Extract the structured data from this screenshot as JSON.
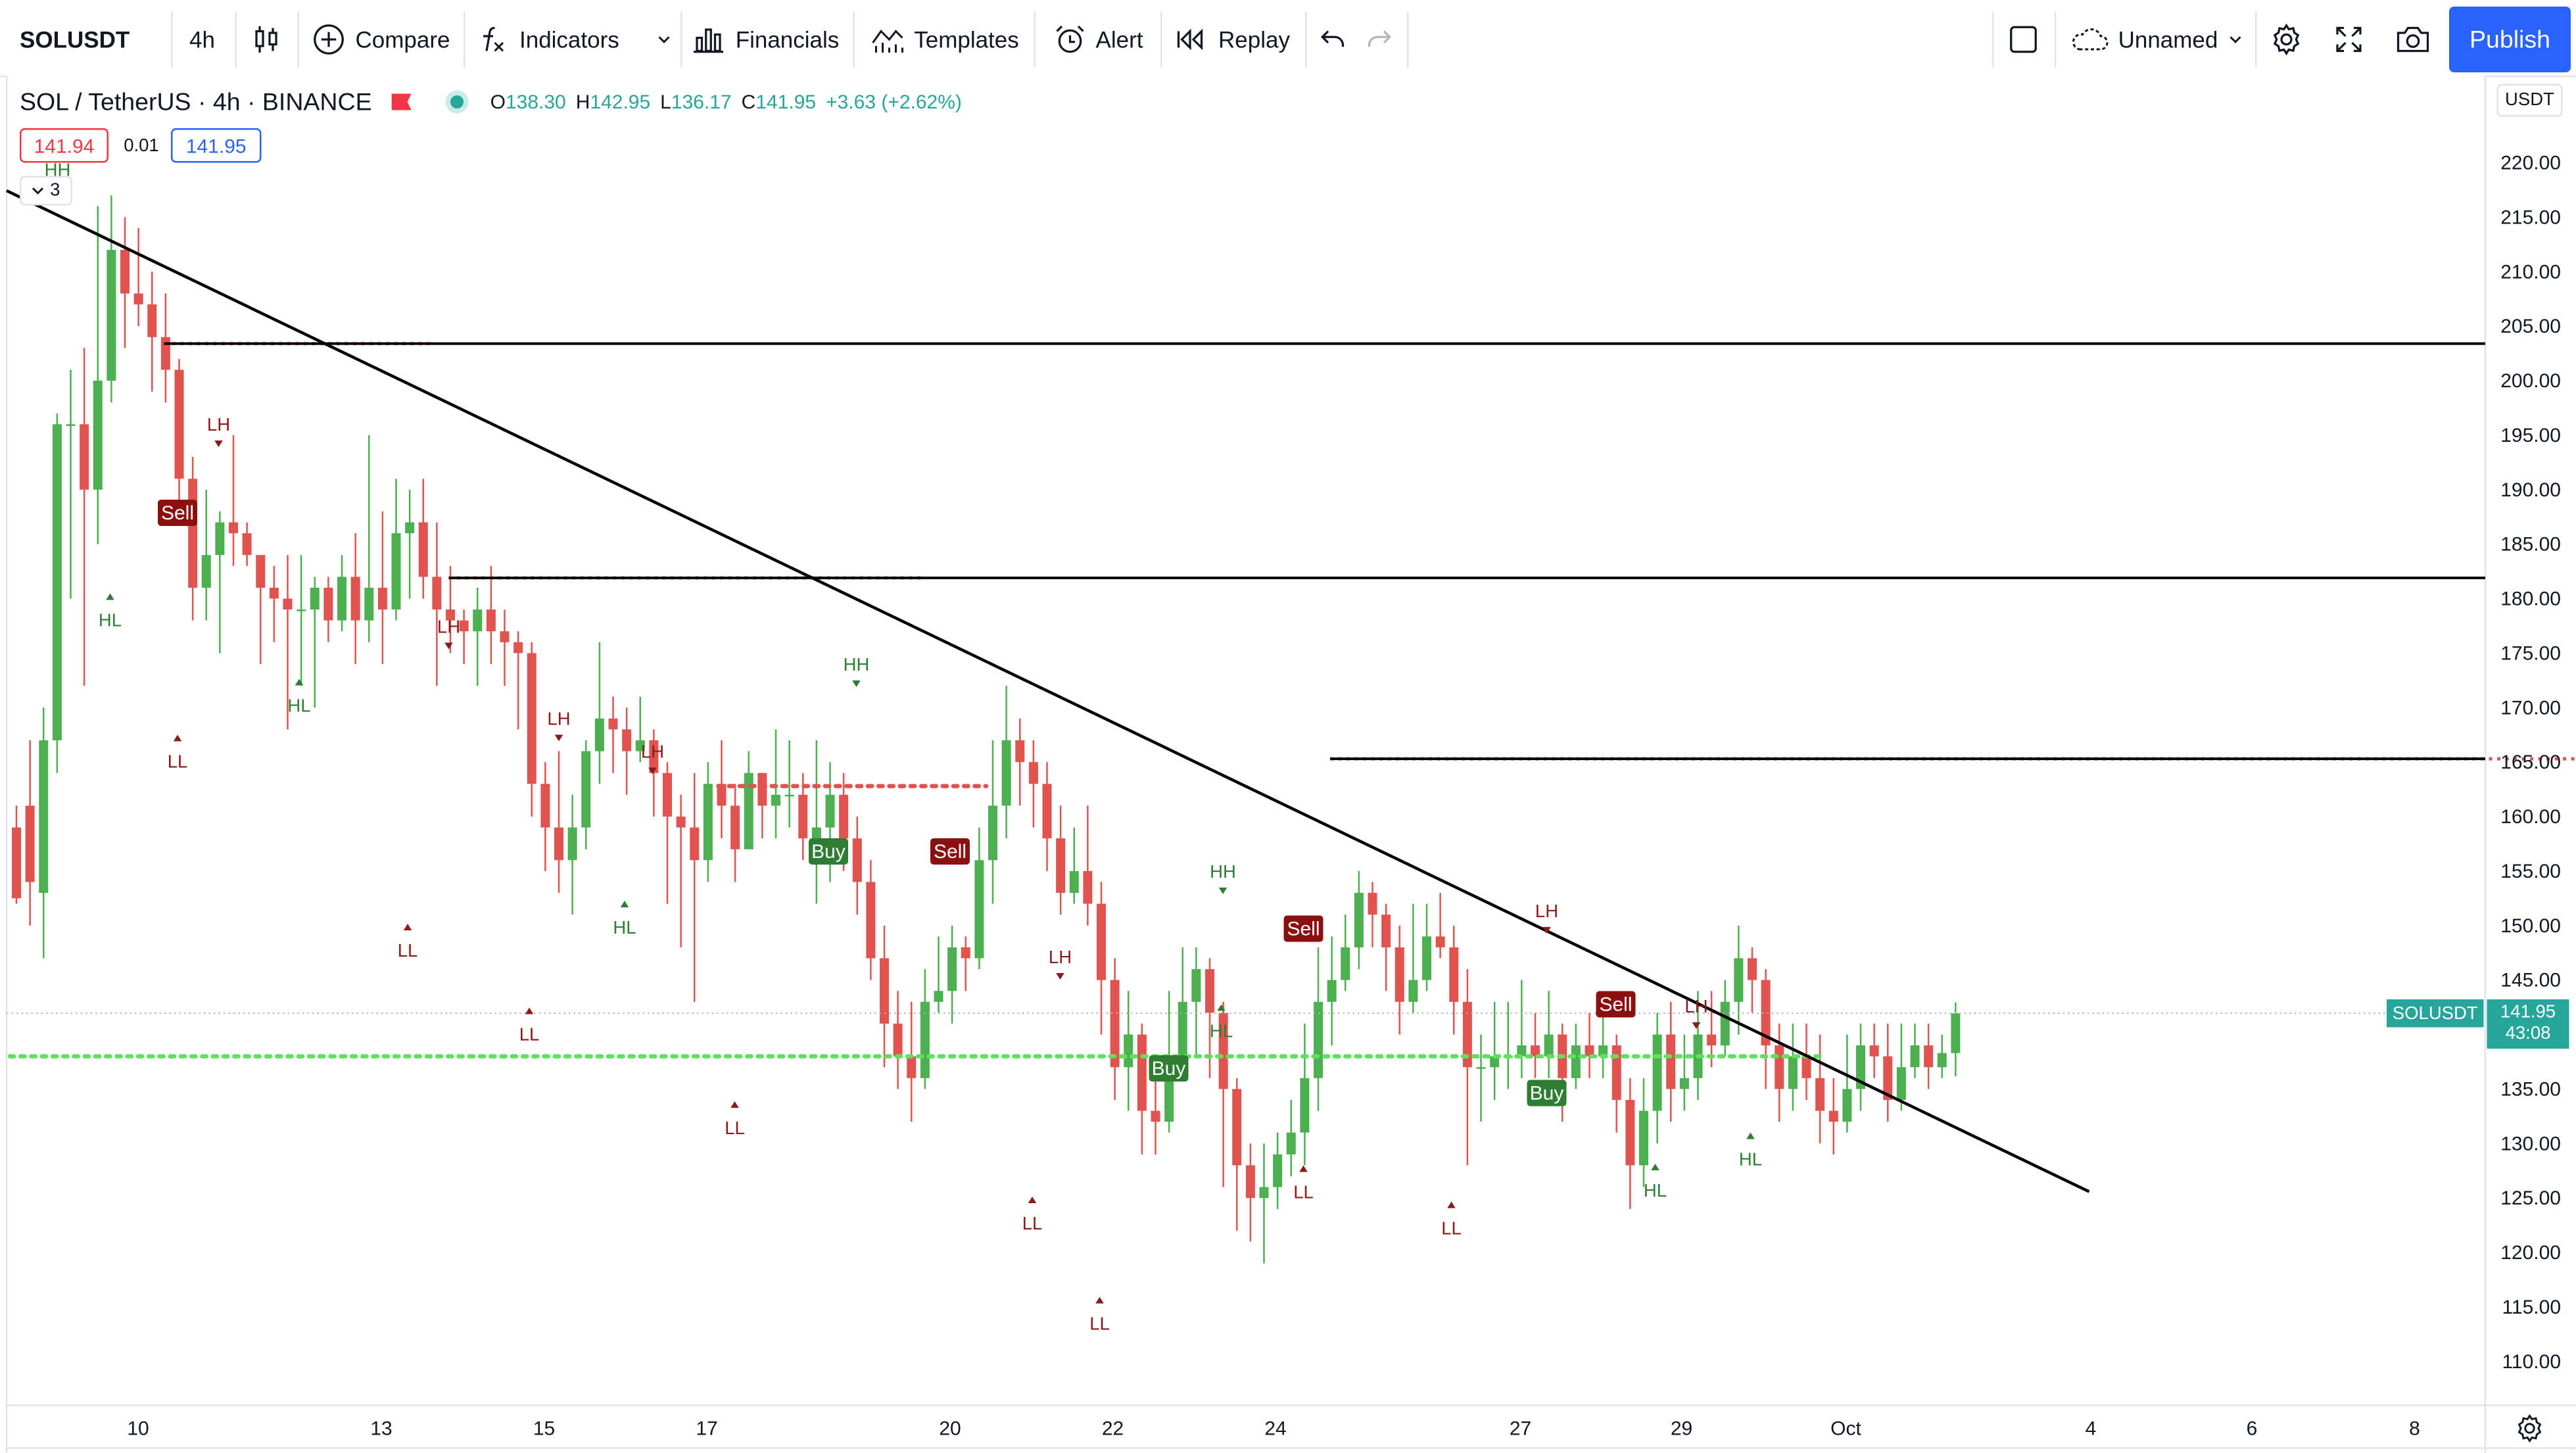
{
  "toolbar": {
    "symbol": "SOLUSDT",
    "interval": "4h",
    "candle_icon": "candles-icon",
    "compare": "Compare",
    "indicators": "Indicators",
    "financials": "Financials",
    "templates": "Templates",
    "alert": "Alert",
    "replay": "Replay",
    "layout_name": "Unnamed",
    "publish": "Publish"
  },
  "legend": {
    "title": "SOL / TetherUS · 4h · BINANCE",
    "open_label": "O",
    "open": "138.30",
    "high_label": "H",
    "high": "142.95",
    "low_label": "L",
    "low": "136.17",
    "close_label": "C",
    "close": "141.95",
    "change": "+3.63 (+2.62%)",
    "sell_price": "141.94",
    "spread": "0.01",
    "buy_price": "141.95",
    "collapsed_count": "3"
  },
  "price_axis": {
    "unit": "USDT",
    "ticks": [
      "220.00",
      "215.00",
      "210.00",
      "205.00",
      "200.00",
      "195.00",
      "190.00",
      "185.00",
      "180.00",
      "175.00",
      "170.00",
      "165.00",
      "160.00",
      "155.00",
      "150.00",
      "145.00",
      "140.00",
      "135.00",
      "130.00",
      "125.00",
      "120.00",
      "115.00",
      "110.00"
    ],
    "last_symbol": "SOLUSDT",
    "last_price": "141.95",
    "countdown": "43:08"
  },
  "time_axis": {
    "ticks": [
      {
        "label": "10",
        "index": 10
      },
      {
        "label": "13",
        "index": 28
      },
      {
        "label": "15",
        "index": 40
      },
      {
        "label": "17",
        "index": 52
      },
      {
        "label": "20",
        "index": 70
      },
      {
        "label": "22",
        "index": 82
      },
      {
        "label": "24",
        "index": 94
      },
      {
        "label": "27",
        "index": 112
      },
      {
        "label": "29",
        "index": 124
      },
      {
        "label": "Oct",
        "index": 136
      },
      {
        "label": "4",
        "index": 154
      },
      {
        "label": "6",
        "index": 166
      },
      {
        "label": "8",
        "index": 178
      }
    ]
  },
  "colors": {
    "up": "#4caf50",
    "down": "#e0534f",
    "buy_label": "#2e7d32",
    "sell_label": "#8b1010",
    "lh_ll": "#8b1a1a",
    "hh_hl": "#2e7d32",
    "last_price": "#26a69a"
  },
  "chart_data": {
    "type": "candlestick",
    "title": "SOL / TetherUS · 4h · BINANCE",
    "ylim": [
      107.5,
      224
    ],
    "candles": [
      [
        2,
        159,
        152.5,
        161,
        152
      ],
      [
        1,
        161,
        154,
        167,
        150
      ],
      [
        1,
        153,
        167,
        170,
        147
      ],
      [
        0,
        167,
        196,
        197,
        164
      ],
      [
        0,
        196,
        196,
        201,
        180
      ],
      [
        1,
        196,
        190,
        203,
        172
      ],
      [
        0,
        190,
        200,
        216,
        185
      ],
      [
        1,
        200,
        212,
        217,
        198
      ],
      [
        1,
        212,
        208,
        215,
        203
      ],
      [
        1,
        208,
        207,
        214,
        205
      ],
      [
        1,
        207,
        204,
        210,
        199
      ],
      [
        1,
        204,
        201,
        208,
        198
      ],
      [
        1,
        201,
        191,
        202,
        187
      ],
      [
        1,
        191,
        181,
        193,
        178
      ],
      [
        0,
        181,
        184,
        190,
        178
      ],
      [
        1,
        184,
        187,
        188,
        175
      ],
      [
        0,
        187,
        186,
        195,
        183
      ],
      [
        1,
        186,
        184,
        187,
        183
      ],
      [
        1,
        184,
        181,
        184,
        174
      ],
      [
        1,
        181,
        180,
        183,
        176
      ],
      [
        1,
        180,
        179,
        184,
        168
      ],
      [
        1,
        179,
        179,
        184,
        172
      ],
      [
        0,
        179,
        181,
        182,
        170
      ],
      [
        1,
        181,
        178,
        182,
        176
      ],
      [
        1,
        178,
        182,
        184,
        177
      ],
      [
        1,
        182,
        178,
        186,
        174
      ],
      [
        0,
        178,
        181,
        195,
        176
      ],
      [
        1,
        181,
        179,
        188,
        174
      ],
      [
        1,
        179,
        186,
        191,
        178
      ],
      [
        0,
        186,
        187,
        190,
        180
      ],
      [
        1,
        187,
        182,
        191,
        180
      ],
      [
        1,
        182,
        179,
        187,
        172
      ],
      [
        1,
        179,
        178,
        183,
        175
      ],
      [
        1,
        178,
        177,
        179,
        174
      ],
      [
        0,
        177,
        179,
        181,
        172
      ],
      [
        1,
        179,
        177,
        183,
        174
      ],
      [
        1,
        177,
        176,
        179,
        172
      ],
      [
        1,
        176,
        175,
        177,
        168
      ],
      [
        1,
        175,
        163,
        176,
        160
      ],
      [
        1,
        163,
        159,
        165,
        155
      ],
      [
        1,
        159,
        156,
        166,
        153
      ],
      [
        1,
        156,
        159,
        162,
        151
      ],
      [
        1,
        159,
        166,
        167,
        157
      ],
      [
        1,
        166,
        169,
        176,
        163
      ],
      [
        1,
        169,
        168,
        171,
        164
      ],
      [
        1,
        168,
        166,
        170,
        162
      ],
      [
        0,
        166,
        167,
        171,
        165
      ],
      [
        1,
        167,
        164,
        168,
        160
      ],
      [
        1,
        164,
        160,
        165,
        152
      ],
      [
        1,
        160,
        159,
        162,
        148
      ],
      [
        1,
        159,
        156,
        164,
        143
      ],
      [
        1,
        156,
        163,
        165,
        154
      ],
      [
        1,
        163,
        161,
        167,
        158
      ],
      [
        1,
        161,
        157,
        163,
        154
      ],
      [
        1,
        157,
        164,
        166,
        158
      ],
      [
        0,
        164,
        161,
        164,
        158
      ],
      [
        1,
        161,
        162,
        168,
        158
      ],
      [
        1,
        162,
        162,
        167,
        159
      ],
      [
        1,
        162,
        158,
        164,
        156
      ],
      [
        1,
        158,
        159,
        167,
        152
      ],
      [
        1,
        159,
        162,
        165,
        154
      ],
      [
        1,
        162,
        158,
        164,
        155
      ],
      [
        1,
        158,
        154,
        160,
        151
      ],
      [
        1,
        154,
        147,
        156,
        145
      ],
      [
        1,
        147,
        141,
        150,
        137
      ],
      [
        1,
        141,
        138,
        144,
        135
      ],
      [
        1,
        138,
        136,
        143,
        132
      ],
      [
        1,
        136,
        143,
        146,
        135
      ],
      [
        1,
        143,
        144,
        149,
        142
      ],
      [
        1,
        144,
        148,
        150,
        141
      ],
      [
        1,
        148,
        147,
        149,
        144
      ],
      [
        1,
        147,
        156,
        159,
        146
      ],
      [
        1,
        156,
        161,
        167,
        152
      ],
      [
        1,
        161,
        167,
        172,
        158
      ],
      [
        1,
        167,
        165,
        169,
        161
      ],
      [
        1,
        165,
        163,
        167,
        159
      ],
      [
        1,
        163,
        158,
        165,
        155
      ],
      [
        1,
        158,
        153,
        161,
        151
      ],
      [
        1,
        153,
        155,
        159,
        152
      ],
      [
        1,
        155,
        152,
        161,
        150
      ],
      [
        1,
        152,
        145,
        154,
        140
      ],
      [
        1,
        145,
        137,
        147,
        134
      ],
      [
        1,
        137,
        140,
        144,
        133
      ],
      [
        1,
        140,
        133,
        141,
        129
      ],
      [
        1,
        133,
        132,
        136,
        129
      ],
      [
        1,
        132,
        138,
        144,
        131
      ],
      [
        1,
        138,
        143,
        148,
        136
      ],
      [
        1,
        143,
        146,
        148,
        138
      ],
      [
        1,
        146,
        142,
        147,
        136
      ],
      [
        1,
        142,
        135,
        143,
        126
      ],
      [
        1,
        135,
        128,
        136,
        122
      ],
      [
        1,
        128,
        125,
        130,
        121
      ],
      [
        1,
        125,
        126,
        130,
        119
      ],
      [
        1,
        126,
        129,
        131,
        124
      ],
      [
        1,
        129,
        131,
        134,
        127
      ],
      [
        1,
        131,
        136,
        141,
        128
      ],
      [
        1,
        136,
        143,
        148,
        133
      ],
      [
        1,
        143,
        145,
        149,
        139
      ],
      [
        1,
        145,
        148,
        151,
        144
      ],
      [
        1,
        148,
        153,
        155,
        146
      ],
      [
        1,
        153,
        151,
        154,
        148
      ],
      [
        1,
        151,
        148,
        152,
        144
      ],
      [
        1,
        148,
        143,
        150,
        140
      ],
      [
        1,
        143,
        145,
        152,
        142
      ],
      [
        1,
        145,
        149,
        152,
        144
      ],
      [
        1,
        149,
        148,
        153,
        147
      ],
      [
        1,
        148,
        143,
        150,
        140
      ],
      [
        1,
        143,
        137,
        146,
        128
      ],
      [
        1,
        137,
        137,
        140,
        132
      ],
      [
        1,
        137,
        138,
        143,
        134
      ],
      [
        1,
        138,
        138,
        143,
        135
      ],
      [
        1,
        138,
        139,
        145,
        136
      ],
      [
        1,
        139,
        138,
        142,
        136
      ],
      [
        1,
        138,
        140,
        144,
        136
      ],
      [
        1,
        140,
        136,
        141,
        132
      ],
      [
        1,
        136,
        139,
        141,
        135
      ],
      [
        1,
        139,
        138,
        142,
        136
      ],
      [
        1,
        138,
        139,
        143,
        136
      ],
      [
        1,
        139,
        134,
        140,
        131
      ],
      [
        1,
        134,
        128,
        136,
        124
      ],
      [
        1,
        128,
        133,
        136,
        126
      ],
      [
        1,
        133,
        140,
        142,
        130
      ],
      [
        1,
        140,
        135,
        143,
        132
      ],
      [
        1,
        135,
        136,
        140,
        133
      ],
      [
        1,
        136,
        140,
        144,
        134
      ],
      [
        1,
        140,
        139,
        144,
        137
      ],
      [
        1,
        139,
        143,
        145,
        138
      ],
      [
        1,
        143,
        147,
        150,
        140
      ],
      [
        1,
        147,
        145,
        148,
        142
      ],
      [
        1,
        145,
        139,
        146,
        135
      ],
      [
        1,
        139,
        135,
        141,
        132
      ],
      [
        1,
        135,
        138,
        141,
        133
      ],
      [
        1,
        138,
        136,
        141,
        134
      ],
      [
        1,
        136,
        133,
        140,
        130
      ],
      [
        1,
        133,
        132,
        136,
        129
      ],
      [
        1,
        132,
        135,
        140,
        131
      ],
      [
        1,
        135,
        139,
        141,
        133
      ],
      [
        1,
        139,
        138,
        141,
        136
      ],
      [
        1,
        138,
        134,
        141,
        132
      ],
      [
        1,
        134,
        137,
        141,
        133
      ],
      [
        1,
        137,
        139,
        141,
        136
      ],
      [
        1,
        139,
        137,
        141,
        135
      ],
      [
        1,
        137,
        138.3,
        140,
        136
      ],
      [
        0,
        138.3,
        141.95,
        142.95,
        136.17
      ]
    ],
    "trendline": {
      "from": {
        "index": 0,
        "price": 216.3
      },
      "to": {
        "index": 150,
        "price": 125.8
      }
    },
    "levels": [
      {
        "price": 203.4,
        "from_index": 23,
        "dotted_from": 23,
        "dotted_to": 43
      },
      {
        "price": 181.9,
        "from_index": 44,
        "dotted_from": 44,
        "dotted_to": 79
      },
      {
        "price": 165.3,
        "from_index": 109,
        "dotted_from": 109,
        "dotted_to": 201
      }
    ],
    "red_dots": [
      {
        "price": 162.8,
        "from_index": 79,
        "to_index": 108
      }
    ],
    "green_dots": [
      {
        "price": 138.0,
        "from_index": 0,
        "to_index": 201
      }
    ],
    "swing_labels": [
      {
        "text": "HH",
        "index": 6,
        "price": 220,
        "type": "high"
      },
      {
        "text": "LH",
        "index": 24,
        "price": 198,
        "type": "high"
      },
      {
        "text": "HL",
        "index": 12,
        "price": 180,
        "type": "low"
      },
      {
        "text": "LL",
        "index": 19,
        "price": 167,
        "type": "low"
      },
      {
        "text": "HL",
        "index": 33,
        "price": 171,
        "type": "low"
      },
      {
        "text": "LH",
        "index": 49,
        "price": 178,
        "type": "high"
      },
      {
        "text": "LL",
        "index": 45,
        "price": 150,
        "type": "low"
      },
      {
        "text": "LH",
        "index": 61,
        "price": 169,
        "type": "high"
      },
      {
        "text": "LL",
        "index": 58,
        "price": 142,
        "type": "low"
      },
      {
        "text": "LH",
        "index": 71,
        "price": 170.3,
        "type": "high"
      },
      {
        "text": "HL",
        "index": 69,
        "price": 151,
        "type": "low"
      },
      {
        "text": "LL",
        "index": 81,
        "price": 133,
        "type": "low"
      },
      {
        "text": "HH",
        "index": 94,
        "price": 175.5,
        "type": "high"
      },
      {
        "text": "LH",
        "index": 116,
        "price": 146.8,
        "type": "high"
      },
      {
        "text": "LL",
        "index": 113,
        "price": 124,
        "type": "low"
      },
      {
        "text": "HH",
        "index": 134,
        "price": 153.5,
        "type": "high"
      },
      {
        "text": "HL",
        "index": 134,
        "price": 138,
        "type": "low"
      },
      {
        "text": "LL",
        "index": 121,
        "price": 119,
        "type": "low"
      },
      {
        "text": "LL",
        "index": 144,
        "price": 124,
        "type": "low"
      },
      {
        "text": "LL",
        "index": 160,
        "price": 122.5,
        "type": "low"
      },
      {
        "text": "LH",
        "index": 170,
        "price": 152,
        "type": "high"
      },
      {
        "text": "LH",
        "index": 187,
        "price": 144,
        "type": "high"
      },
      {
        "text": "HL",
        "index": 182,
        "price": 129.5,
        "type": "low"
      },
      {
        "text": "HL",
        "index": 193,
        "price": 130.5,
        "type": "low"
      }
    ],
    "signals": [
      {
        "text": "Sell",
        "index": 19,
        "price": 186,
        "type": "sell"
      },
      {
        "text": "Buy",
        "index": 91,
        "price": 158,
        "type": "buy"
      },
      {
        "text": "Sell",
        "index": 105,
        "price": 158,
        "type": "sell"
      },
      {
        "text": "Buy",
        "index": 129,
        "price": 138,
        "type": "buy"
      },
      {
        "text": "Sell",
        "index": 144,
        "price": 151,
        "type": "sell"
      },
      {
        "text": "Buy",
        "index": 171,
        "price": 135.7,
        "type": "buy"
      },
      {
        "text": "Sell",
        "index": 178,
        "price": 144.3,
        "type": "sell"
      }
    ]
  }
}
